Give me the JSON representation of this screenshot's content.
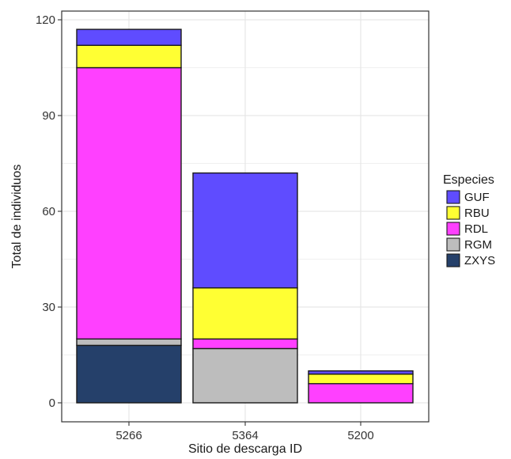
{
  "chart_data": {
    "type": "bar",
    "stacked": true,
    "xlabel": "Sitio de descarga ID",
    "ylabel": "Total de individuos",
    "categories": [
      "5266",
      "5364",
      "5200"
    ],
    "ylim": [
      0,
      120
    ],
    "yticks": [
      0,
      30,
      60,
      90,
      120
    ],
    "grid": true,
    "legend": {
      "title": "Especies",
      "position": "right"
    },
    "series": [
      {
        "name": "ZXYS",
        "color": "#25406a",
        "values": [
          18,
          0,
          0
        ]
      },
      {
        "name": "RGM",
        "color": "#bdbdbd",
        "values": [
          2,
          17,
          0
        ]
      },
      {
        "name": "RDL",
        "color": "#ff40ff",
        "values": [
          85,
          3,
          6
        ]
      },
      {
        "name": "RBU",
        "color": "#ffff33",
        "values": [
          7,
          16,
          3
        ]
      },
      {
        "name": "GUF",
        "color": "#5f4cff",
        "values": [
          5,
          36,
          1
        ]
      }
    ],
    "legend_order": [
      "GUF",
      "RBU",
      "RDL",
      "RGM",
      "ZXYS"
    ]
  }
}
